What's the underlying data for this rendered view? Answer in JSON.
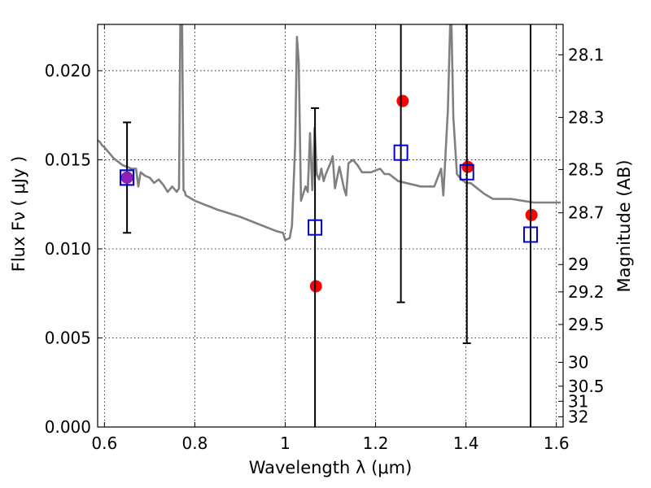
{
  "chart_data": {
    "type": "scatter",
    "title": "",
    "xlabel": "Wavelength  λ (μm)",
    "ylabel": "Flux  Fν  ( μJy )",
    "y2label": "Magnitude (AB)",
    "xlim": [
      0.585,
      1.615
    ],
    "ylim": [
      0.0,
      0.0226
    ],
    "grid": true,
    "xticks": [
      0.6,
      0.8,
      1.0,
      1.2,
      1.4,
      1.6
    ],
    "xtick_labels": [
      "0.6",
      "0.8",
      "1",
      "1.2",
      "1.4",
      "1.6"
    ],
    "yticks": [
      0.0,
      0.005,
      0.01,
      0.015,
      0.02
    ],
    "ytick_labels": [
      "0.000",
      "0.005",
      "0.010",
      "0.015",
      "0.020"
    ],
    "y2ticks": [
      28.1,
      28.3,
      28.5,
      28.7,
      29,
      29.2,
      29.5,
      30,
      30.5,
      31,
      32
    ],
    "y2tick_labels": [
      "28.1",
      "28.3",
      "28.5",
      "28.7",
      "29",
      "29.2",
      "29.5",
      "30",
      "30.5",
      "31",
      "32"
    ],
    "series": [
      {
        "mark": "line",
        "color": "#808080",
        "x": [
          0.585,
          0.59,
          0.595,
          0.6,
          0.61,
          0.62,
          0.63,
          0.64,
          0.65,
          0.66,
          0.67,
          0.675,
          0.68,
          0.69,
          0.7,
          0.71,
          0.72,
          0.73,
          0.74,
          0.75,
          0.76,
          0.765,
          0.768,
          0.772,
          0.775,
          0.778,
          0.78,
          0.8,
          0.85,
          0.9,
          0.95,
          0.98,
          0.995,
          1.0,
          1.01,
          1.015,
          1.022,
          1.026,
          1.03,
          1.035,
          1.045,
          1.05,
          1.055,
          1.06,
          1.065,
          1.07,
          1.075,
          1.08,
          1.085,
          1.09,
          1.1,
          1.105,
          1.11,
          1.12,
          1.13,
          1.135,
          1.14,
          1.15,
          1.16,
          1.17,
          1.18,
          1.19,
          1.2,
          1.21,
          1.22,
          1.23,
          1.25,
          1.3,
          1.33,
          1.345,
          1.35,
          1.36,
          1.365,
          1.368,
          1.372,
          1.38,
          1.39,
          1.4,
          1.41,
          1.42,
          1.44,
          1.46,
          1.5,
          1.55,
          1.6,
          1.61
        ],
        "y": [
          0.0161,
          0.016,
          0.0158,
          0.0157,
          0.0154,
          0.0151,
          0.0149,
          0.0147,
          0.0146,
          0.0145,
          0.0145,
          0.0135,
          0.0143,
          0.0141,
          0.014,
          0.0137,
          0.0139,
          0.0136,
          0.0132,
          0.0135,
          0.0132,
          0.0134,
          0.0226,
          0.0226,
          0.0133,
          0.0132,
          0.013,
          0.0127,
          0.0122,
          0.0118,
          0.0113,
          0.011,
          0.0109,
          0.0105,
          0.0106,
          0.0113,
          0.0158,
          0.0219,
          0.0205,
          0.0127,
          0.0135,
          0.0132,
          0.0165,
          0.0133,
          0.0168,
          0.0142,
          0.0139,
          0.0145,
          0.0138,
          0.0142,
          0.0148,
          0.0152,
          0.0134,
          0.0146,
          0.0134,
          0.013,
          0.0148,
          0.015,
          0.0147,
          0.0143,
          0.0143,
          0.0143,
          0.0144,
          0.0145,
          0.0142,
          0.0142,
          0.0138,
          0.0135,
          0.0135,
          0.0145,
          0.013,
          0.0178,
          0.0226,
          0.0226,
          0.0174,
          0.0142,
          0.0139,
          0.0137,
          0.0137,
          0.0135,
          0.0131,
          0.0128,
          0.0128,
          0.0126,
          0.0126,
          0.0126
        ]
      },
      {
        "mark": "filled-circle",
        "color": "#ff0000",
        "x": [
          0.65,
          1.068,
          1.26,
          1.404,
          1.545
        ],
        "y": [
          0.014,
          0.0079,
          0.0183,
          0.0146,
          0.0119
        ]
      },
      {
        "mark": "open-square-with-errorbar",
        "color": "#0000cc",
        "x": [
          0.65,
          1.066,
          1.256,
          1.402,
          1.543
        ],
        "y": [
          0.014,
          0.0112,
          0.0154,
          0.0143,
          0.0108
        ],
        "yerr_low": [
          0.0109,
          0.0,
          0.007,
          0.0047,
          0.0
        ],
        "yerr_high": [
          0.0171,
          0.0179,
          0.0226,
          0.0226,
          0.0226
        ]
      }
    ]
  }
}
